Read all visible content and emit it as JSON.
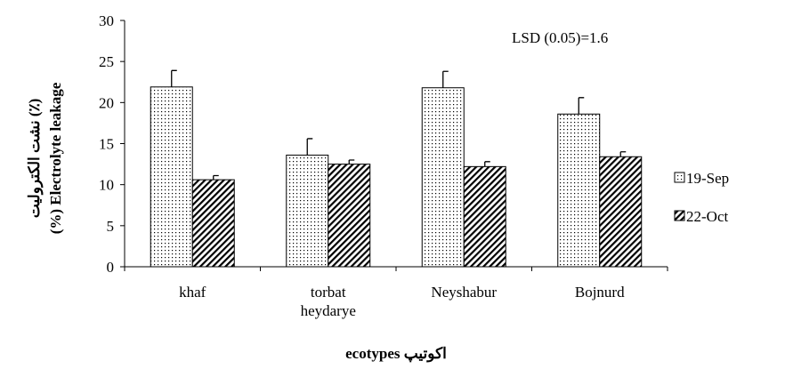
{
  "chart_data": {
    "type": "bar",
    "categories": [
      "khaf",
      "torbat heydarye",
      "Neyshabur",
      "Bojnurd"
    ],
    "series": [
      {
        "name": "19-Sep",
        "pattern": "dots",
        "color": "#000000",
        "values": [
          21.9,
          13.6,
          21.8,
          18.6
        ],
        "errors": [
          2.0,
          2.0,
          2.0,
          2.0
        ]
      },
      {
        "name": "22-Oct",
        "pattern": "hatch",
        "color": "#000000",
        "values": [
          10.6,
          12.5,
          12.2,
          13.4
        ],
        "errors": [
          0.5,
          0.5,
          0.6,
          0.6
        ]
      }
    ],
    "ylim": [
      0,
      30
    ],
    "yticks": [
      0,
      5,
      10,
      15,
      20,
      25,
      30
    ],
    "grid": false,
    "y_label": [
      "نشت الکترولیت (٪)",
      "(%) Electrolyte leakage"
    ],
    "x_label": "ecotypes   اکوتیپ",
    "annotation": "LSD (0.05)=1.6",
    "legend": "right"
  }
}
